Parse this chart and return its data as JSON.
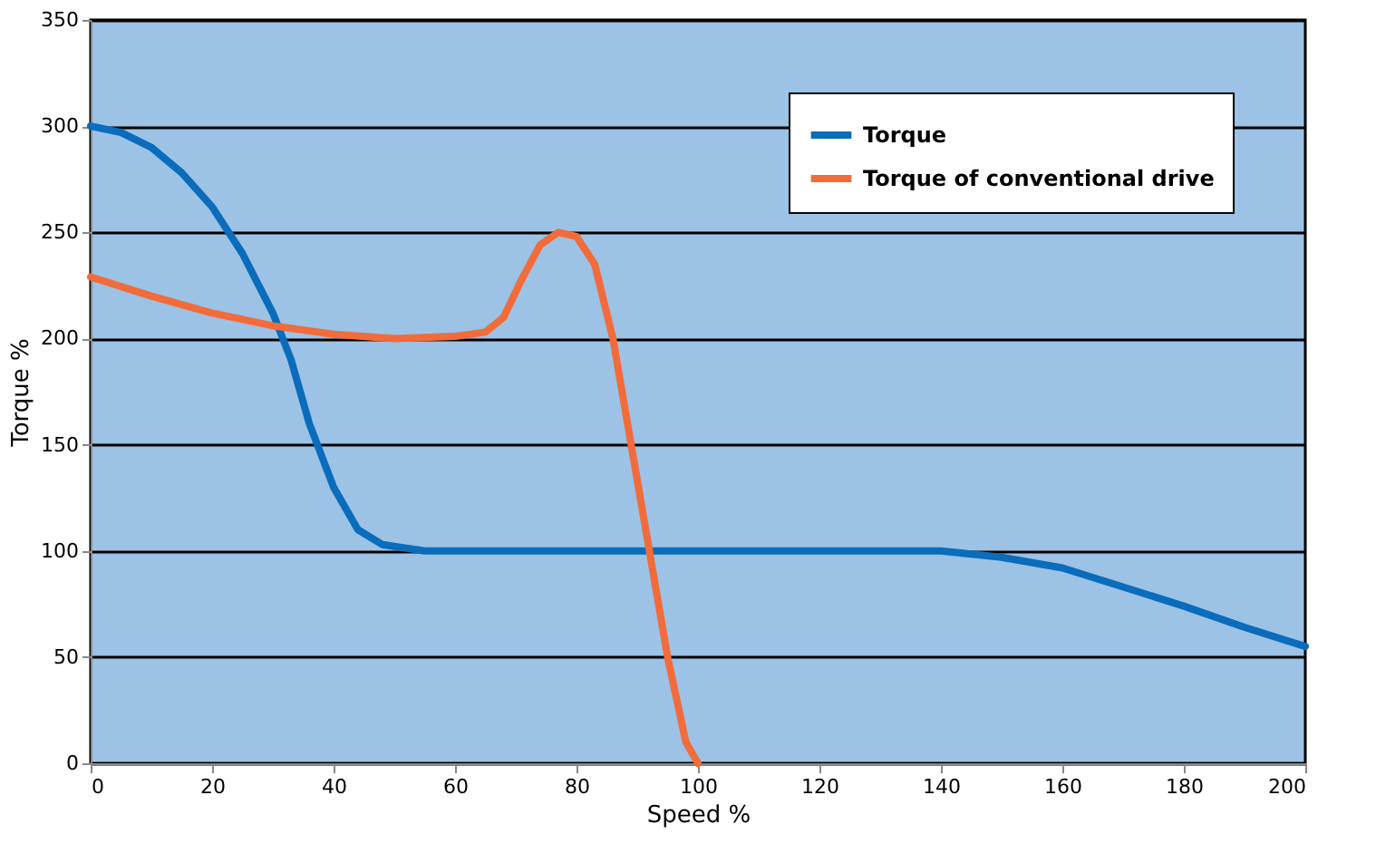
{
  "chart_data": {
    "type": "line",
    "xlabel": "Speed %",
    "ylabel": "Torque %",
    "xlim": [
      0,
      200
    ],
    "xticks": [
      0,
      20,
      40,
      60,
      80,
      100,
      120,
      140,
      160,
      180,
      200
    ],
    "ylim": [
      0,
      350
    ],
    "yticks": [
      0,
      50,
      100,
      150,
      200,
      250,
      300,
      350
    ],
    "grid": "y",
    "legend": "top right",
    "line_style": "solid",
    "marker": "none",
    "series": [
      {
        "name": "Torque",
        "color": "#0a6cbb",
        "x": [
          0,
          5,
          10,
          15,
          20,
          25,
          30,
          33,
          36,
          40,
          44,
          48,
          55,
          60,
          100,
          140,
          150,
          160,
          170,
          180,
          190,
          200
        ],
        "values": [
          300,
          297,
          290,
          278,
          262,
          240,
          212,
          190,
          160,
          130,
          110,
          103,
          100,
          100,
          100,
          100,
          97,
          92,
          83,
          74,
          64,
          55
        ]
      },
      {
        "name": "Torque of conventional drive",
        "color": "#f26b3a",
        "x": [
          0,
          10,
          20,
          30,
          40,
          50,
          60,
          65,
          68,
          71,
          74,
          77,
          80,
          83,
          86,
          89,
          92,
          95,
          98,
          100
        ],
        "values": [
          229,
          220,
          212,
          206,
          202,
          200,
          201,
          203,
          210,
          228,
          244,
          250,
          248,
          235,
          200,
          150,
          100,
          50,
          10,
          0
        ]
      }
    ]
  }
}
